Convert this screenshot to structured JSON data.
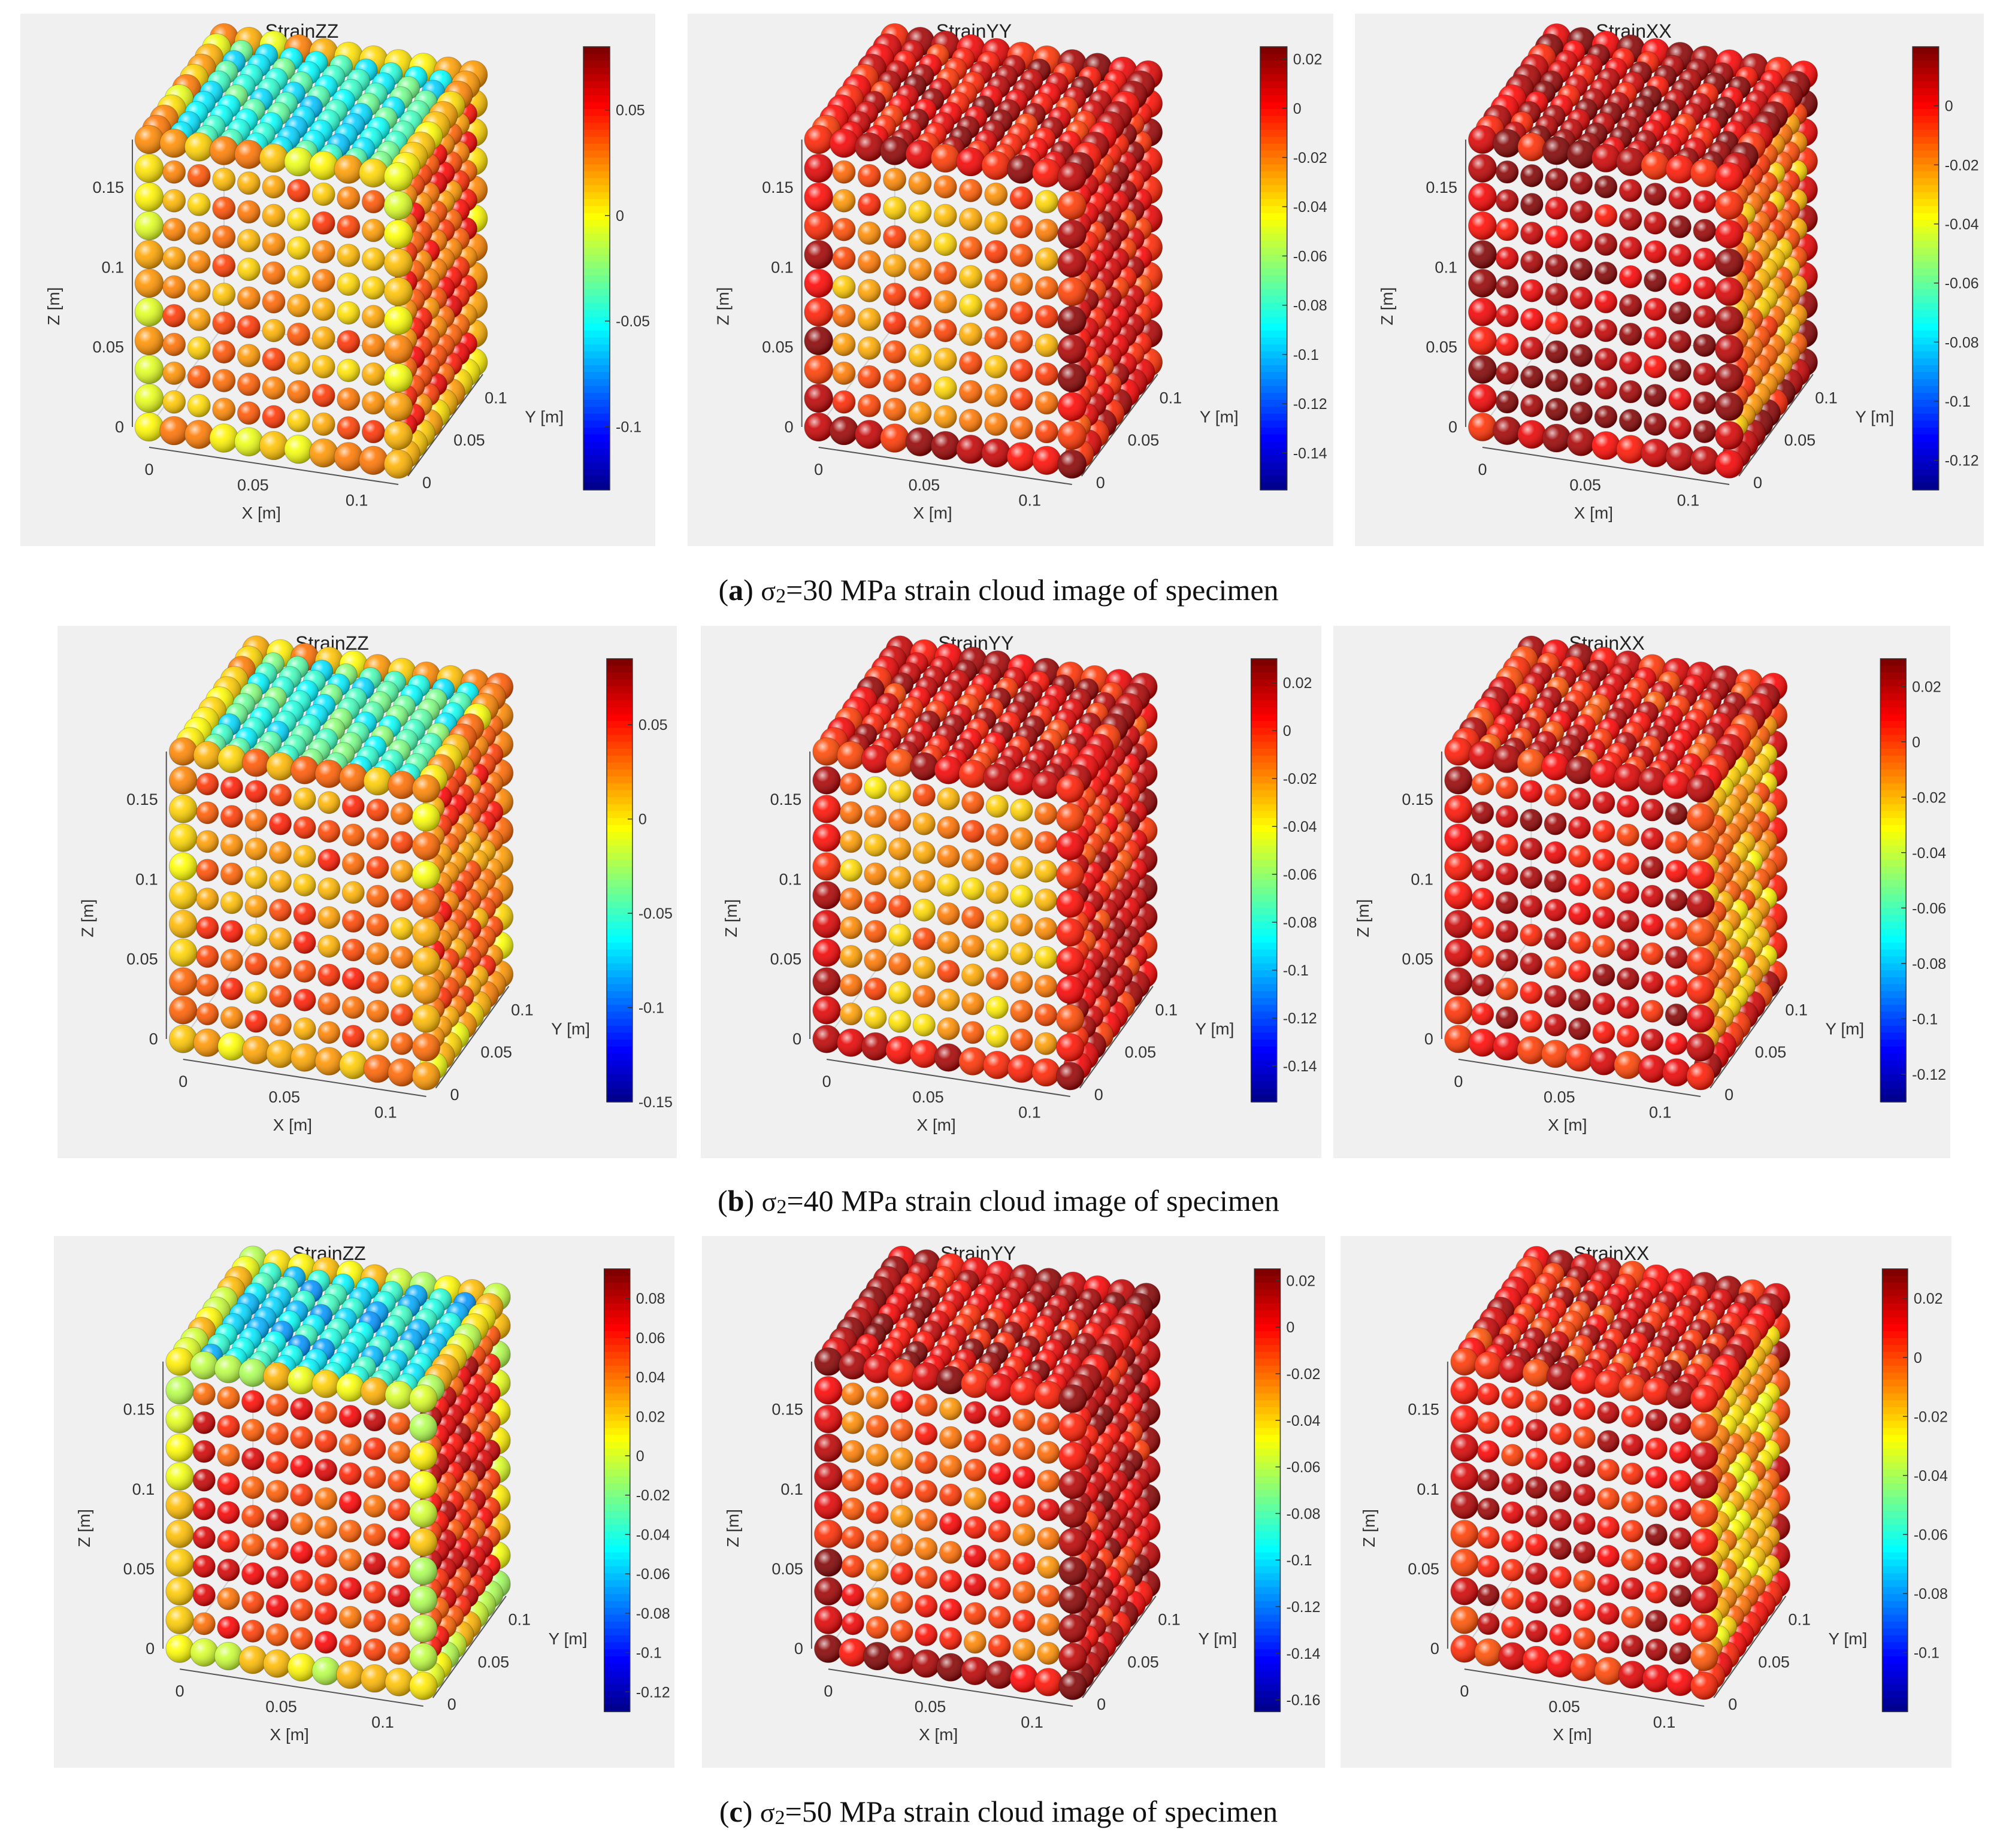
{
  "captions": [
    {
      "letter": "a",
      "symbol": "σ",
      "subscript": "2",
      "text": "=30 MPa strain cloud image of specimen"
    },
    {
      "letter": "b",
      "symbol": "σ",
      "subscript": "2",
      "text": "=40 MPa strain cloud image of specimen"
    },
    {
      "letter": "c",
      "symbol": "σ",
      "subscript": "2",
      "text": "=50 MPa strain cloud image of specimen"
    }
  ],
  "chart_data": [
    {
      "type": "scatter3d",
      "title": "StrainZZ",
      "xlabel": "X [m]",
      "ylabel": "Y [m]",
      "zlabel": "Z [m]",
      "x_ticks": [
        "0",
        "0.05",
        "0.1"
      ],
      "y_ticks": [
        "0",
        "0.05",
        "0.1"
      ],
      "z_ticks": [
        "0",
        "0.05",
        "0.1",
        "0.15"
      ],
      "colorbar": {
        "min": -0.13,
        "max": 0.08,
        "ticks": [
          0.05,
          0,
          -0.05,
          -0.1
        ],
        "labels": [
          "0.05",
          "0",
          "-0.05",
          "-0.1"
        ]
      },
      "front_face_value": 0.025,
      "side_face_value": 0.04,
      "top_face_value": -0.045,
      "edge_value": 0.012
    },
    {
      "type": "scatter3d",
      "title": "StrainYY",
      "xlabel": "X [m]",
      "ylabel": "Y [m]",
      "zlabel": "Z [m]",
      "x_ticks": [
        "0",
        "0.05",
        "0.1"
      ],
      "y_ticks": [
        "0",
        "0.05",
        "0.1"
      ],
      "z_ticks": [
        "0",
        "0.05",
        "0.1",
        "0.15"
      ],
      "colorbar": {
        "min": -0.155,
        "max": 0.025,
        "ticks": [
          0.02,
          0,
          -0.02,
          -0.04,
          -0.06,
          -0.08,
          -0.1,
          -0.12,
          -0.14
        ],
        "labels": [
          "0.02",
          "0",
          "-0.02",
          "-0.04",
          "-0.06",
          "-0.08",
          "-0.1",
          "-0.12",
          "-0.14"
        ]
      },
      "front_face_value": -0.02,
      "side_face_value": 0.005,
      "top_face_value": 0.008,
      "edge_value": 0.008
    },
    {
      "type": "scatter3d",
      "title": "StrainXX",
      "xlabel": "X [m]",
      "ylabel": "Y [m]",
      "zlabel": "Z [m]",
      "x_ticks": [
        "0",
        "0.05",
        "0.1"
      ],
      "y_ticks": [
        "0",
        "0.05",
        "0.1"
      ],
      "z_ticks": [
        "0",
        "0.05",
        "0.1",
        "0.15"
      ],
      "colorbar": {
        "min": -0.13,
        "max": 0.02,
        "ticks": [
          0,
          -0.02,
          -0.04,
          -0.06,
          -0.08,
          -0.1,
          -0.12
        ],
        "labels": [
          "0",
          "-0.02",
          "-0.04",
          "-0.06",
          "-0.08",
          "-0.1",
          "-0.12"
        ]
      },
      "front_face_value": 0.012,
      "side_face_value": -0.018,
      "top_face_value": 0.008,
      "edge_value": 0.008
    },
    {
      "type": "scatter3d",
      "title": "StrainZZ",
      "xlabel": "X [m]",
      "ylabel": "Y [m]",
      "zlabel": "Z [m]",
      "x_ticks": [
        "0",
        "0.05",
        "0.1"
      ],
      "y_ticks": [
        "0",
        "0.05",
        "0.1"
      ],
      "z_ticks": [
        "0",
        "0.05",
        "0.1",
        "0.15"
      ],
      "colorbar": {
        "min": -0.15,
        "max": 0.085,
        "ticks": [
          0.05,
          0,
          -0.05,
          -0.1,
          -0.15
        ],
        "labels": [
          "0.05",
          "0",
          "-0.05",
          "-0.1",
          "-0.15"
        ]
      },
      "front_face_value": 0.03,
      "side_face_value": 0.035,
      "top_face_value": -0.05,
      "edge_value": 0.015
    },
    {
      "type": "scatter3d",
      "title": "StrainYY",
      "xlabel": "X [m]",
      "ylabel": "Y [m]",
      "zlabel": "Z [m]",
      "x_ticks": [
        "0",
        "0.05",
        "0.1"
      ],
      "y_ticks": [
        "0",
        "0.05",
        "0.1"
      ],
      "z_ticks": [
        "0",
        "0.05",
        "0.1",
        "0.15"
      ],
      "colorbar": {
        "min": -0.155,
        "max": 0.03,
        "ticks": [
          0.02,
          0,
          -0.02,
          -0.04,
          -0.06,
          -0.08,
          -0.1,
          -0.12,
          -0.14
        ],
        "labels": [
          "0.02",
          "0",
          "-0.02",
          "-0.04",
          "-0.06",
          "-0.08",
          "-0.1",
          "-0.12",
          "-0.14"
        ]
      },
      "front_face_value": -0.02,
      "side_face_value": 0.008,
      "top_face_value": 0.01,
      "edge_value": 0.01
    },
    {
      "type": "scatter3d",
      "title": "StrainXX",
      "xlabel": "X [m]",
      "ylabel": "Y [m]",
      "zlabel": "Z [m]",
      "x_ticks": [
        "0",
        "0.05",
        "0.1"
      ],
      "y_ticks": [
        "0",
        "0.05",
        "0.1"
      ],
      "z_ticks": [
        "0",
        "0.05",
        "0.1",
        "0.15"
      ],
      "colorbar": {
        "min": -0.13,
        "max": 0.03,
        "ticks": [
          0.02,
          0,
          -0.02,
          -0.04,
          -0.06,
          -0.08,
          -0.1,
          -0.12
        ],
        "labels": [
          "0.02",
          "0",
          "-0.02",
          "-0.04",
          "-0.06",
          "-0.08",
          "-0.1",
          "-0.12"
        ]
      },
      "front_face_value": 0.015,
      "side_face_value": -0.015,
      "top_face_value": 0.01,
      "edge_value": 0.012
    },
    {
      "type": "scatter3d",
      "title": "StrainZZ",
      "xlabel": "X [m]",
      "ylabel": "Y [m]",
      "zlabel": "Z [m]",
      "x_ticks": [
        "0",
        "0.05",
        "0.1"
      ],
      "y_ticks": [
        "0",
        "0.05",
        "0.1"
      ],
      "z_ticks": [
        "0",
        "0.05",
        "0.1",
        "0.15"
      ],
      "colorbar": {
        "min": -0.13,
        "max": 0.095,
        "ticks": [
          0.08,
          0.06,
          0.04,
          0.02,
          0,
          -0.02,
          -0.04,
          -0.06,
          -0.08,
          -0.1,
          -0.12
        ],
        "labels": [
          "0.08",
          "0.06",
          "0.04",
          "0.02",
          "0",
          "-0.02",
          "-0.04",
          "-0.06",
          "-0.08",
          "-0.1",
          "-0.12"
        ]
      },
      "front_face_value": 0.06,
      "side_face_value": 0.065,
      "top_face_value": -0.05,
      "edge_value": 0.01
    },
    {
      "type": "scatter3d",
      "title": "StrainYY",
      "xlabel": "X [m]",
      "ylabel": "Y [m]",
      "zlabel": "Z [m]",
      "x_ticks": [
        "0",
        "0.05",
        "0.1"
      ],
      "y_ticks": [
        "0",
        "0.05",
        "0.1"
      ],
      "z_ticks": [
        "0",
        "0.05",
        "0.1",
        "0.15"
      ],
      "colorbar": {
        "min": -0.165,
        "max": 0.025,
        "ticks": [
          0.02,
          0,
          -0.02,
          -0.04,
          -0.06,
          -0.08,
          -0.1,
          -0.12,
          -0.14,
          -0.16
        ],
        "labels": [
          "0.02",
          "0",
          "-0.02",
          "-0.04",
          "-0.06",
          "-0.08",
          "-0.1",
          "-0.12",
          "-0.14",
          "-0.16"
        ]
      },
      "front_face_value": -0.01,
      "side_face_value": 0.008,
      "top_face_value": 0.01,
      "edge_value": 0.01
    },
    {
      "type": "scatter3d",
      "title": "StrainXX",
      "xlabel": "X [m]",
      "ylabel": "Y [m]",
      "zlabel": "Z [m]",
      "x_ticks": [
        "0",
        "0.05",
        "0.1"
      ],
      "y_ticks": [
        "0",
        "0.05",
        "0.1"
      ],
      "z_ticks": [
        "0",
        "0.05",
        "0.1",
        "0.15"
      ],
      "colorbar": {
        "min": -0.12,
        "max": 0.03,
        "ticks": [
          0.02,
          0,
          -0.02,
          -0.04,
          -0.06,
          -0.08,
          -0.1
        ],
        "labels": [
          "0.02",
          "0",
          "-0.02",
          "-0.04",
          "-0.06",
          "-0.08",
          "-0.1"
        ]
      },
      "front_face_value": 0.015,
      "side_face_value": -0.015,
      "top_face_value": 0.012,
      "edge_value": 0.012
    }
  ]
}
